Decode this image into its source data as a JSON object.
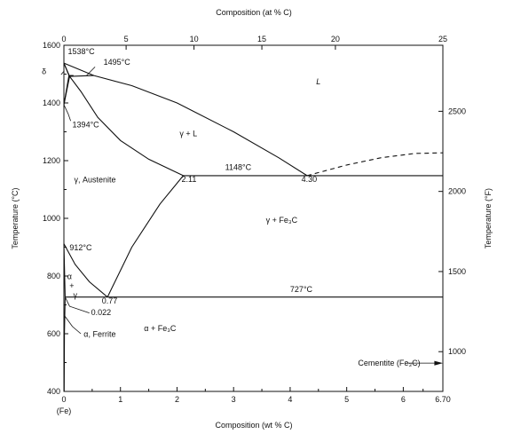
{
  "chart_data": {
    "type": "line",
    "title": "",
    "xlabel": "Composition (wt % C)",
    "x2label": "Composition (at % C)",
    "ylabel": "Temperature (°C)",
    "y2label": "Temperature (°F)",
    "xlim": [
      0,
      6.7
    ],
    "ylim": [
      400,
      1600
    ],
    "grid": false,
    "x_ticks": [
      {
        "value": 0,
        "label": "0"
      },
      {
        "value": 1,
        "label": "1"
      },
      {
        "value": 2,
        "label": "2"
      },
      {
        "value": 3,
        "label": "3"
      },
      {
        "value": 4,
        "label": "4"
      },
      {
        "value": 5,
        "label": "5"
      },
      {
        "value": 6,
        "label": "6"
      },
      {
        "value": 6.7,
        "label": "6.70"
      }
    ],
    "x_origin_note": "(Fe)",
    "x2_ticks": [
      {
        "wt": 0,
        "label": "0"
      },
      {
        "wt": 1.1,
        "label": "5"
      },
      {
        "wt": 2.3,
        "label": "10"
      },
      {
        "wt": 3.5,
        "label": "15"
      },
      {
        "wt": 4.8,
        "label": "20"
      },
      {
        "wt": 6.7,
        "label": "25"
      }
    ],
    "y_ticks": [
      400,
      600,
      800,
      1000,
      1200,
      1400,
      1600
    ],
    "y2_ticks_f": [
      1000,
      1500,
      2000,
      2500
    ],
    "series": [
      {
        "type": "solid",
        "x": [
          0,
          0.1,
          0.3,
          0.6,
          1.0,
          1.5,
          2.11
        ],
        "y": [
          1394,
          1492,
          1440,
          1350,
          1270,
          1205,
          1148
        ]
      },
      {
        "type": "solid",
        "x": [
          0.1,
          0.53
        ],
        "y": [
          1492,
          1495
        ]
      },
      {
        "type": "solid",
        "x": [
          0,
          0.1
        ],
        "y": [
          1538,
          1492
        ]
      },
      {
        "type": "solid",
        "x": [
          0,
          0.53,
          1.2,
          2.0,
          3.0,
          3.8,
          4.3
        ],
        "y": [
          1538,
          1495,
          1460,
          1400,
          1300,
          1210,
          1148
        ]
      },
      {
        "type": "solid",
        "x": [
          0,
          0.09
        ],
        "y": [
          1538,
          1495
        ]
      },
      {
        "type": "solid",
        "x": [
          0.09,
          0.17
        ],
        "y": [
          1495,
          1495
        ]
      },
      {
        "type": "solid",
        "x": [
          0,
          0.09
        ],
        "y": [
          1394,
          1495
        ]
      },
      {
        "type": "solid",
        "x": [
          2.11,
          6.7
        ],
        "y": [
          1148,
          1148
        ]
      },
      {
        "type": "dashed",
        "x": [
          4.3,
          5.0,
          5.6,
          6.2,
          6.7
        ],
        "y": [
          1148,
          1185,
          1210,
          1225,
          1227
        ]
      },
      {
        "type": "solid",
        "x": [
          0.77,
          1.2,
          1.7,
          2.11
        ],
        "y": [
          727,
          900,
          1050,
          1148
        ]
      },
      {
        "type": "solid",
        "x": [
          0.022,
          6.7
        ],
        "y": [
          727,
          727
        ]
      },
      {
        "type": "solid",
        "x": [
          0,
          0.2,
          0.45,
          0.77
        ],
        "y": [
          912,
          840,
          780,
          727
        ]
      },
      {
        "type": "solid",
        "x": [
          0,
          0.022
        ],
        "y": [
          912,
          727
        ]
      },
      {
        "type": "solid",
        "x": [
          0.022,
          0.01,
          0.005
        ],
        "y": [
          727,
          600,
          400
        ]
      }
    ],
    "region_labels": [
      {
        "text": "L",
        "x": 4.5,
        "y": 1465,
        "italic": true
      },
      {
        "text": "γ + L",
        "x": 2.2,
        "y": 1285,
        "italic": false
      },
      {
        "text": "γ, Austenite",
        "x": 0.55,
        "y": 1125,
        "italic": false
      },
      {
        "text": "γ + Fe₃C",
        "x": 3.85,
        "y": 985,
        "italic": false
      },
      {
        "text": "α + Fe₃C",
        "x": 1.7,
        "y": 610,
        "italic": false
      },
      {
        "text": "δ",
        "x": -0.35,
        "y": 1500,
        "italic": false
      },
      {
        "text": "α",
        "x": 0.1,
        "y": 790,
        "italic": false
      },
      {
        "text": "+",
        "x": 0.14,
        "y": 757,
        "italic": false
      },
      {
        "text": "γ",
        "x": 0.2,
        "y": 725,
        "italic": false
      }
    ],
    "annotations": [
      {
        "text": "1538°C",
        "x": 0.07,
        "y": 1570
      },
      {
        "text": "1495°C",
        "x": 0.7,
        "y": 1533
      },
      {
        "text": "1394°C",
        "x": 0.15,
        "y": 1316
      },
      {
        "text": "1148°C",
        "x": 2.85,
        "y": 1168
      },
      {
        "text": "2.11",
        "x": 2.08,
        "y": 1126
      },
      {
        "text": "4.30",
        "x": 4.2,
        "y": 1126
      },
      {
        "text": "912°C",
        "x": 0.1,
        "y": 890
      },
      {
        "text": "727°C",
        "x": 4.0,
        "y": 745
      },
      {
        "text": "0.77",
        "x": 0.67,
        "y": 705
      },
      {
        "text": "0.022",
        "x": 0.48,
        "y": 665
      },
      {
        "text": "α, Ferrite",
        "x": 0.35,
        "y": 590
      },
      {
        "text": "Cementite (Fe₃C)",
        "x": 5.2,
        "y": 490
      }
    ]
  }
}
